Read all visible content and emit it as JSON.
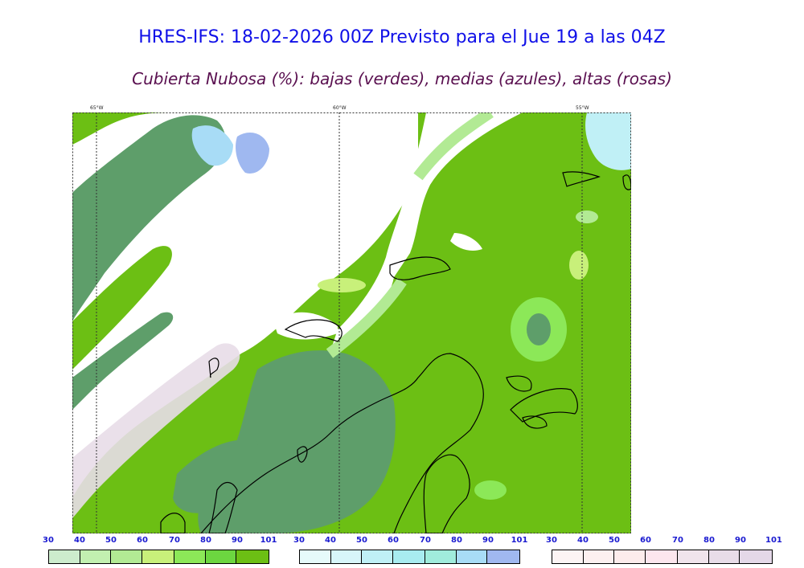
{
  "title": "HRES-IFS: 18-02-2026 00Z Previsto para el Jue 19 a las 04Z",
  "subtitle": "Cubierta Nubosa (%): bajas (verdes), medias (azules), altas (rosas)",
  "map": {
    "longitude_labels": [
      "65°W",
      "60°W",
      "55°W"
    ],
    "colors": {
      "low_base": "#6cbf14",
      "low_dense": "#5e9e6a",
      "mid": "#9fb8f0",
      "high": "#e8dde8",
      "coast": "#000000"
    }
  },
  "legends": [
    {
      "name": "bajas",
      "ticks": [
        "30",
        "40",
        "50",
        "60",
        "70",
        "80",
        "90",
        "101"
      ],
      "colors": [
        "#cdeccd",
        "#c2f0b0",
        "#b2ea94",
        "#c8f07a",
        "#8ce858",
        "#6cd640",
        "#6cbf14"
      ]
    },
    {
      "name": "medias",
      "ticks": [
        "30",
        "40",
        "50",
        "60",
        "70",
        "80",
        "90",
        "101"
      ],
      "colors": [
        "#e6fafa",
        "#d8f6fa",
        "#c0f0f6",
        "#a8ecf0",
        "#a0ecdc",
        "#a8dcf6",
        "#a0b8f0"
      ]
    },
    {
      "name": "altas",
      "ticks": [
        "30",
        "40",
        "50",
        "60",
        "70",
        "80",
        "90",
        "101"
      ],
      "colors": [
        "#fcf4f4",
        "#fcf0f0",
        "#fcecec",
        "#fce6ee",
        "#f0e4ec",
        "#e8dce8",
        "#e4d8e8"
      ]
    }
  ]
}
